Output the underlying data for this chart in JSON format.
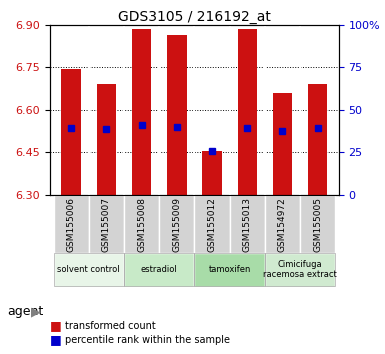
{
  "title": "GDS3105 / 216192_at",
  "samples": [
    "GSM155006",
    "GSM155007",
    "GSM155008",
    "GSM155009",
    "GSM155012",
    "GSM155013",
    "GSM154972",
    "GSM155005"
  ],
  "bar_tops": [
    6.745,
    6.69,
    6.885,
    6.865,
    6.455,
    6.885,
    6.66,
    6.69
  ],
  "bar_bottom": 6.3,
  "blue_marker_left": [
    6.535,
    6.53,
    6.545,
    6.54,
    6.455,
    6.535,
    6.525,
    6.535
  ],
  "blue_marker_right": [
    6.545,
    6.54,
    0.0,
    6.548,
    6.458,
    6.545,
    0.0,
    6.545
  ],
  "blue_marker_y": [
    6.535,
    6.53,
    6.545,
    6.54,
    6.455,
    6.535,
    6.524,
    6.535
  ],
  "ylim": [
    6.3,
    6.9
  ],
  "yticks_left": [
    6.3,
    6.45,
    6.6,
    6.75,
    6.9
  ],
  "yticks_right": [
    0,
    25,
    50,
    75,
    100
  ],
  "ytick_labels_right": [
    "0",
    "25",
    "50",
    "75",
    "100%"
  ],
  "groups": [
    {
      "label": "solvent control",
      "start": 0,
      "end": 2,
      "color": "#e8f5e8"
    },
    {
      "label": "estradiol",
      "start": 2,
      "end": 4,
      "color": "#c8eac8"
    },
    {
      "label": "tamoxifen",
      "start": 4,
      "end": 6,
      "color": "#a8dca8"
    },
    {
      "label": "Cimicifuga\nracemosa extract",
      "start": 6,
      "end": 8,
      "color": "#d0ead0"
    }
  ],
  "bar_color": "#cc1111",
  "blue_color": "#0000cc",
  "agent_label": "agent",
  "legend_items": [
    {
      "label": "transformed count",
      "color": "#cc1111"
    },
    {
      "label": "percentile rank within the sample",
      "color": "#0000cc"
    }
  ]
}
